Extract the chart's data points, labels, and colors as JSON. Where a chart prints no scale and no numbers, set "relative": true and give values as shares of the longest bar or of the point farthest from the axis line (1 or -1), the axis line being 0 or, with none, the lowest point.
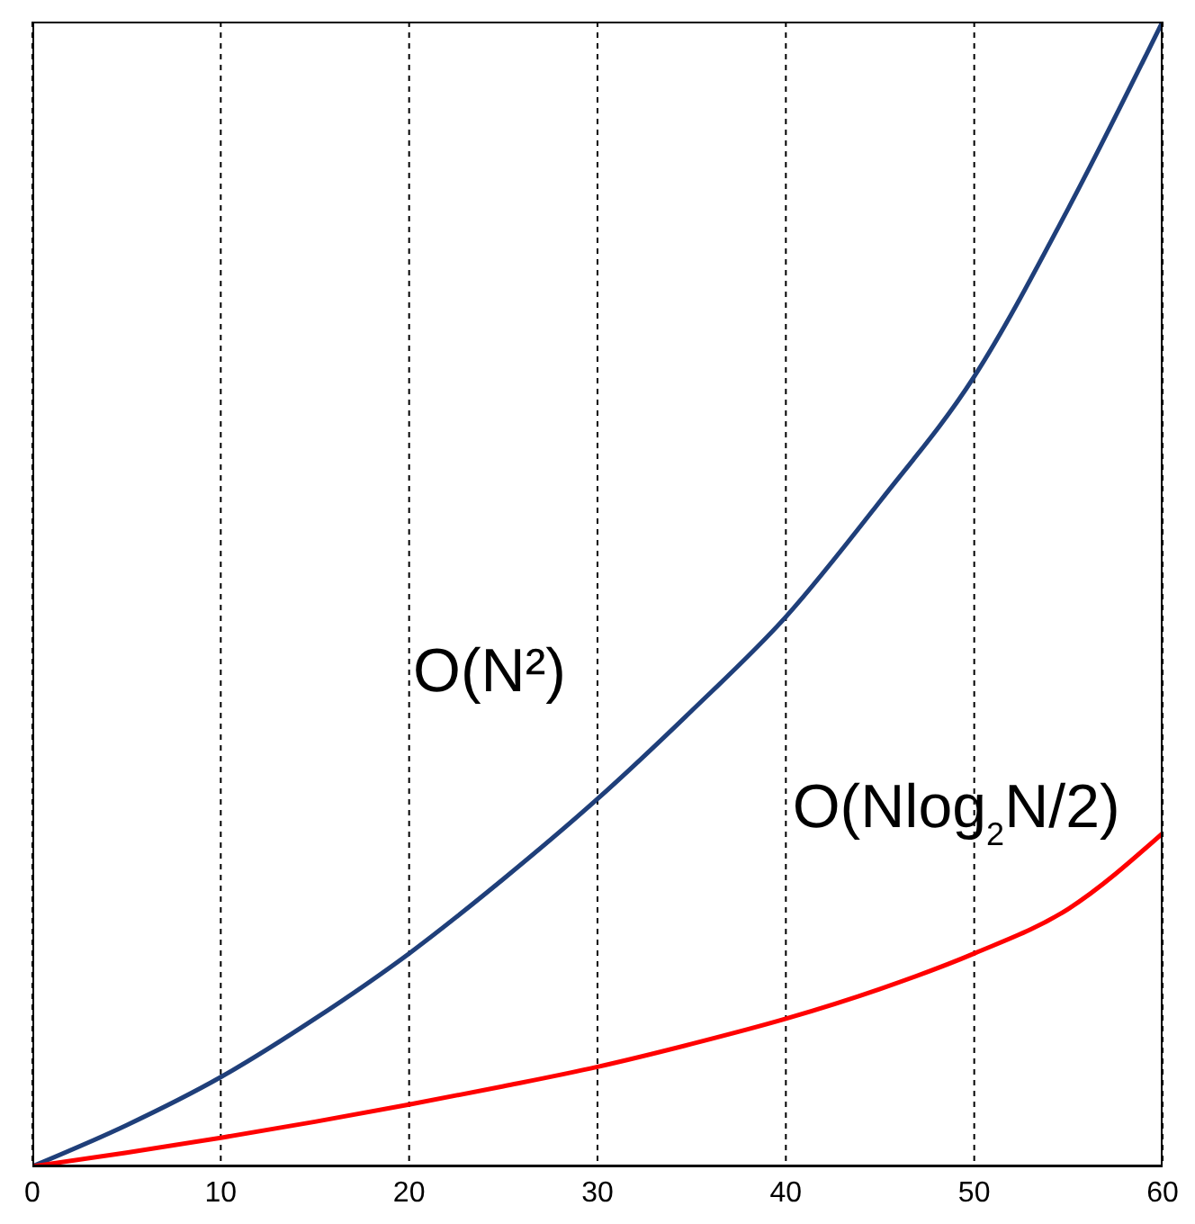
{
  "chart_data": {
    "type": "line",
    "relative": true,
    "x": [
      0,
      5,
      10,
      15,
      20,
      25,
      30,
      35,
      40,
      45,
      50,
      55,
      60
    ],
    "series": [
      {
        "name": "O(N²)",
        "color": "#1f3f7a",
        "values": [
          0,
          0.036,
          0.078,
          0.129,
          0.186,
          0.251,
          0.321,
          0.398,
          0.48,
          0.581,
          0.69,
          0.837,
          1
        ]
      },
      {
        "name": "O(Nlog$_{2}$N/2)",
        "color": "#ff0000",
        "values": [
          0,
          0.012,
          0.025,
          0.039,
          0.054,
          0.07,
          0.087,
          0.107,
          0.129,
          0.155,
          0.186,
          0.225,
          0.291
        ]
      }
    ],
    "xlim": [
      0,
      60
    ],
    "xticks": [
      0,
      10,
      20,
      30,
      40,
      50,
      60
    ],
    "grid": "x",
    "marker": "none",
    "line_style": "solid"
  }
}
